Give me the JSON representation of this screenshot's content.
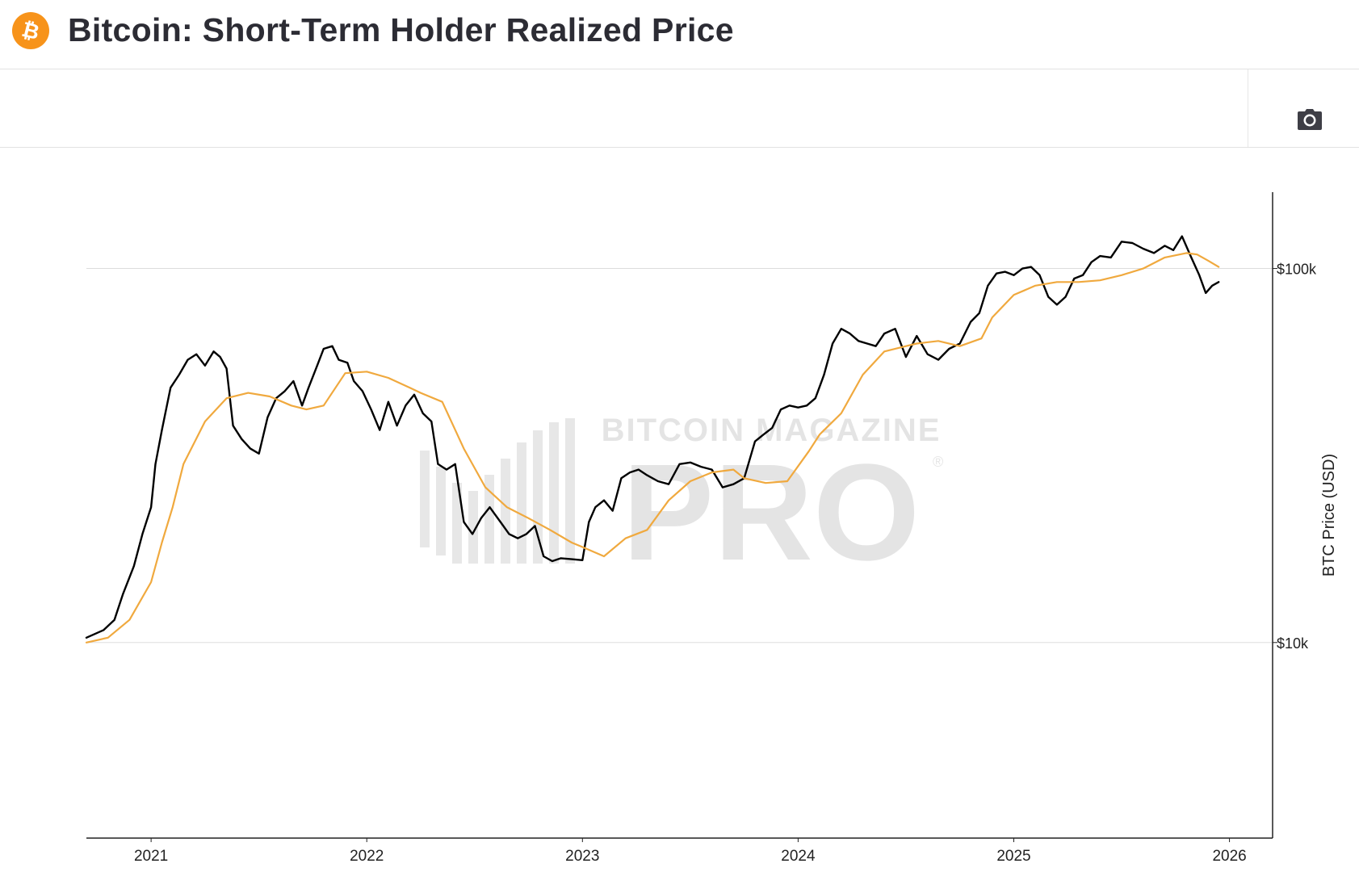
{
  "header": {
    "title": "Bitcoin: Short-Term Holder Realized Price",
    "logo_icon": "bitcoin-icon",
    "logo_color": "#F7931A"
  },
  "toolbar": {
    "camera_icon": "camera-icon"
  },
  "watermark": {
    "line1": "BITCOIN MAGAZINE",
    "line2": "PRO",
    "mark": "®"
  },
  "chart_data": {
    "type": "line",
    "title": "Bitcoin: Short-Term Holder Realized Price",
    "xlabel": "",
    "ylabel": "BTC Price (USD)",
    "y_scale": "log",
    "ylim": [
      3000,
      160000
    ],
    "xlim": [
      2020.7,
      2026.2
    ],
    "x_ticks": [
      2021,
      2022,
      2023,
      2024,
      2025,
      2026
    ],
    "x_tick_labels": [
      "2021",
      "2022",
      "2023",
      "2024",
      "2025",
      "2026"
    ],
    "y_ticks": [
      10000,
      100000
    ],
    "y_tick_labels": [
      "$10k",
      "$100k"
    ],
    "grid": true,
    "series": [
      {
        "name": "BTC Price",
        "color": "#000000",
        "x": [
          2020.7,
          2020.78,
          2020.83,
          2020.87,
          2020.92,
          2020.96,
          2021.0,
          2021.02,
          2021.05,
          2021.09,
          2021.13,
          2021.17,
          2021.21,
          2021.25,
          2021.29,
          2021.32,
          2021.35,
          2021.38,
          2021.42,
          2021.46,
          2021.5,
          2021.54,
          2021.58,
          2021.62,
          2021.66,
          2021.7,
          2021.73,
          2021.77,
          2021.8,
          2021.84,
          2021.87,
          2021.91,
          2021.94,
          2021.98,
          2022.02,
          2022.06,
          2022.1,
          2022.14,
          2022.18,
          2022.22,
          2022.26,
          2022.3,
          2022.33,
          2022.37,
          2022.41,
          2022.45,
          2022.49,
          2022.53,
          2022.57,
          2022.62,
          2022.66,
          2022.7,
          2022.74,
          2022.78,
          2022.82,
          2022.86,
          2022.9,
          2022.95,
          2023.0,
          2023.03,
          2023.06,
          2023.1,
          2023.14,
          2023.18,
          2023.22,
          2023.26,
          2023.3,
          2023.35,
          2023.4,
          2023.45,
          2023.5,
          2023.55,
          2023.6,
          2023.65,
          2023.7,
          2023.75,
          2023.8,
          2023.84,
          2023.88,
          2023.92,
          2023.96,
          2024.0,
          2024.04,
          2024.08,
          2024.12,
          2024.16,
          2024.2,
          2024.24,
          2024.28,
          2024.32,
          2024.36,
          2024.4,
          2024.45,
          2024.5,
          2024.55,
          2024.6,
          2024.65,
          2024.7,
          2024.75,
          2024.8,
          2024.84,
          2024.88,
          2024.92,
          2024.96,
          2025.0,
          2025.04,
          2025.08,
          2025.12,
          2025.16,
          2025.2,
          2025.24,
          2025.28,
          2025.32,
          2025.36,
          2025.4,
          2025.45,
          2025.5,
          2025.55,
          2025.6,
          2025.65,
          2025.7,
          2025.74,
          2025.78,
          2025.82,
          2025.86,
          2025.89,
          2025.92,
          2025.95
        ],
        "y": [
          10300,
          10800,
          11500,
          13500,
          16000,
          19500,
          23000,
          30000,
          37000,
          48000,
          52000,
          57000,
          59000,
          55000,
          60000,
          58000,
          54000,
          38000,
          35000,
          33000,
          32000,
          40000,
          45000,
          47000,
          50000,
          43000,
          48000,
          55000,
          61000,
          62000,
          57000,
          56000,
          50000,
          47000,
          42000,
          37000,
          44000,
          38000,
          43000,
          46000,
          41000,
          39000,
          30000,
          29000,
          30000,
          21000,
          19500,
          21500,
          23000,
          21000,
          19500,
          19000,
          19500,
          20500,
          17000,
          16500,
          16800,
          16700,
          16600,
          21000,
          23000,
          24000,
          22500,
          27500,
          28500,
          29000,
          28000,
          27000,
          26500,
          30000,
          30300,
          29500,
          29000,
          26000,
          26500,
          27500,
          34500,
          36000,
          37500,
          42000,
          43000,
          42500,
          43000,
          45000,
          52000,
          63000,
          69000,
          67000,
          64000,
          63000,
          62000,
          67000,
          69000,
          58000,
          66000,
          59000,
          57000,
          61000,
          63000,
          72000,
          76000,
          90000,
          97000,
          98000,
          96000,
          100000,
          101000,
          96000,
          84000,
          80000,
          84000,
          94000,
          96000,
          104000,
          108000,
          107000,
          118000,
          117000,
          113000,
          110000,
          115000,
          112000,
          122000,
          108000,
          96000,
          86000,
          90000,
          92000
        ]
      },
      {
        "name": "Short-Term Holder Realized Price",
        "color": "#F0A93E",
        "x": [
          2020.7,
          2020.8,
          2020.9,
          2021.0,
          2021.05,
          2021.1,
          2021.15,
          2021.25,
          2021.35,
          2021.45,
          2021.55,
          2021.65,
          2021.72,
          2021.8,
          2021.9,
          2022.0,
          2022.1,
          2022.2,
          2022.25,
          2022.35,
          2022.45,
          2022.55,
          2022.65,
          2022.75,
          2022.85,
          2022.95,
          2023.0,
          2023.1,
          2023.2,
          2023.3,
          2023.4,
          2023.5,
          2023.6,
          2023.7,
          2023.75,
          2023.85,
          2023.95,
          2024.05,
          2024.1,
          2024.2,
          2024.3,
          2024.4,
          2024.5,
          2024.55,
          2024.65,
          2024.75,
          2024.85,
          2024.9,
          2025.0,
          2025.1,
          2025.2,
          2025.3,
          2025.4,
          2025.5,
          2025.6,
          2025.7,
          2025.8,
          2025.85,
          2025.9,
          2025.95
        ],
        "y": [
          10000,
          10300,
          11500,
          14500,
          18500,
          23000,
          30000,
          39000,
          45000,
          46500,
          45500,
          43000,
          42000,
          43000,
          52500,
          53000,
          51000,
          48000,
          46500,
          44000,
          33000,
          26000,
          23000,
          21500,
          20000,
          18500,
          18000,
          17000,
          19000,
          20000,
          24000,
          27000,
          28500,
          29000,
          27500,
          26700,
          27000,
          32500,
          36000,
          41000,
          52000,
          60000,
          62000,
          63000,
          64000,
          62000,
          65000,
          74000,
          85000,
          90000,
          92000,
          92000,
          93000,
          96000,
          100000,
          107000,
          110000,
          109000,
          105000,
          101000
        ]
      }
    ]
  }
}
